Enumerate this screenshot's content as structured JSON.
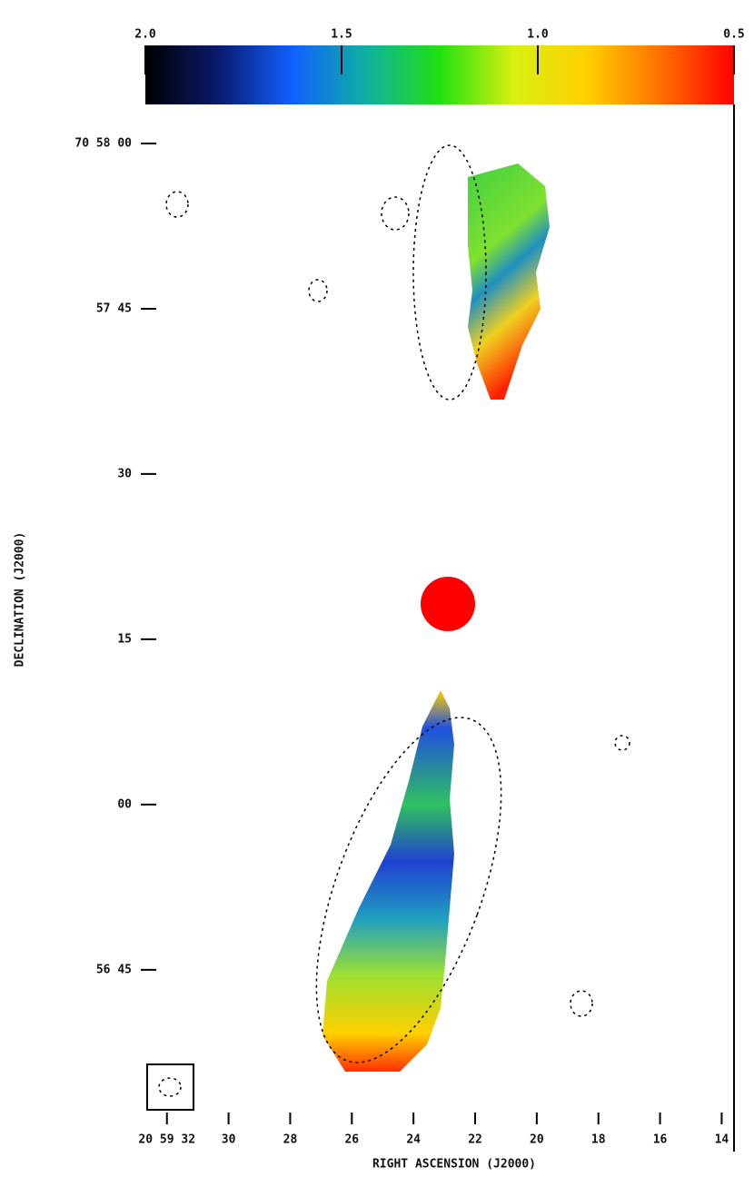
{
  "chart_data": {
    "type": "image",
    "xlabel": "RIGHT ASCENSION (J2000)",
    "ylabel": "DECLINATION (J2000)",
    "xlim": [
      32.7,
      13.6
    ],
    "xticks": [
      {
        "value": 32,
        "label": "20 59 32"
      },
      30,
      28,
      26,
      24,
      22,
      20,
      18,
      16,
      14
    ],
    "ylim": [
      -31.5,
      68.9
    ],
    "yticks": [
      {
        "value": 60,
        "label": "70 58 00"
      },
      {
        "value": 45,
        "label": "57 45"
      },
      30,
      15,
      {
        "value": 0,
        "label": "00"
      },
      {
        "value": -15,
        "label": "56 45"
      }
    ],
    "colorbar": {
      "lim": [
        2.0,
        0.5
      ],
      "ticks": [
        {
          "value": 2,
          "label": "2.0"
        },
        1.5,
        {
          "value": 1,
          "label": "1.0"
        },
        0.5
      ],
      "colormap": [
        "#000000",
        "#0a1a70",
        "#1060ff",
        "#10b0a0",
        "#20e010",
        "#d8f010",
        "#ffd000",
        "#ff7000",
        "#ff0000"
      ]
    }
  }
}
